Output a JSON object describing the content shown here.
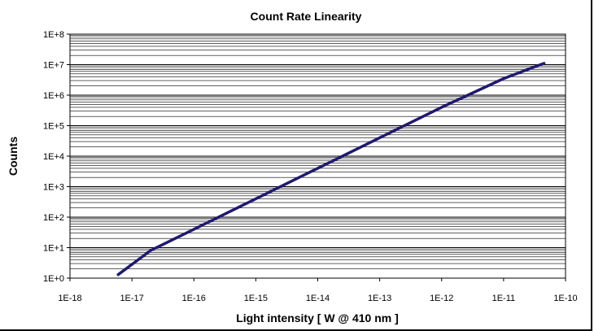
{
  "chart_data": {
    "type": "line",
    "title": "Count Rate Linearity",
    "xlabel": "Light intensity [ W @ 410 nm ]",
    "ylabel": "Counts",
    "x_scale": "log",
    "y_scale": "log",
    "xlim": [
      1e-18,
      1e-10
    ],
    "ylim": [
      1,
      100000000
    ],
    "x_tick_labels": [
      "1E-18",
      "1E-17",
      "1E-16",
      "1E-15",
      "1E-14",
      "1E-13",
      "1E-12",
      "1E-11",
      "1E-10"
    ],
    "y_tick_labels": [
      "1E+0",
      "1E+1",
      "1E+2",
      "1E+3",
      "1E+4",
      "1E+5",
      "1E+6",
      "1E+7",
      "1E+8"
    ],
    "grid": "horizontal major and minor gridlines",
    "legend": "none",
    "series": [
      {
        "color": "#1f1a6e",
        "x": [
          6e-18,
          2e-17,
          1e-16,
          1e-15,
          1e-14,
          1e-13,
          1e-12,
          1e-11,
          4.5e-11
        ],
        "y": [
          1.3,
          8,
          40,
          400,
          4000,
          40000,
          400000,
          3500000,
          11000000
        ]
      }
    ]
  }
}
